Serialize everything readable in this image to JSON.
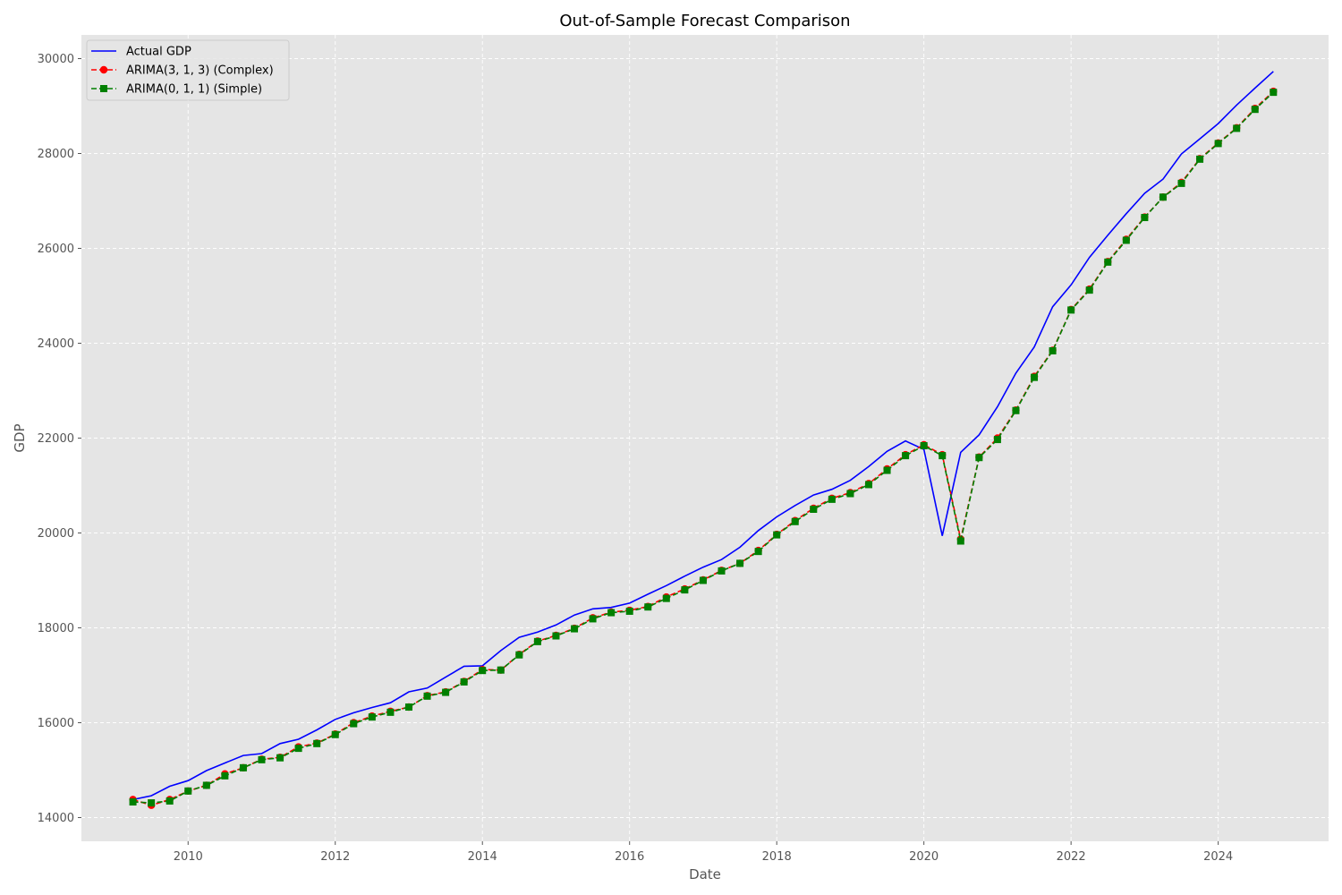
{
  "chart_data": {
    "type": "line",
    "title": "Out-of-Sample Forecast Comparison",
    "xlabel": "Date",
    "ylabel": "GDP",
    "xlim": [
      2008.55,
      2025.5
    ],
    "ylim": [
      13500,
      30500
    ],
    "x_ticks": [
      2010,
      2012,
      2014,
      2016,
      2018,
      2020,
      2022,
      2024
    ],
    "y_ticks": [
      14000,
      16000,
      18000,
      20000,
      22000,
      24000,
      26000,
      28000,
      30000
    ],
    "grid": true,
    "legend_position": "top-left",
    "x": [
      2009.25,
      2009.5,
      2009.75,
      2010.0,
      2010.25,
      2010.5,
      2010.75,
      2011.0,
      2011.25,
      2011.5,
      2011.75,
      2012.0,
      2012.25,
      2012.5,
      2012.75,
      2013.0,
      2013.25,
      2013.5,
      2013.75,
      2014.0,
      2014.25,
      2014.5,
      2014.75,
      2015.0,
      2015.25,
      2015.5,
      2015.75,
      2016.0,
      2016.25,
      2016.5,
      2016.75,
      2017.0,
      2017.25,
      2017.5,
      2017.75,
      2018.0,
      2018.25,
      2018.5,
      2018.75,
      2019.0,
      2019.25,
      2019.5,
      2019.75,
      2020.0,
      2020.25,
      2020.5,
      2020.75,
      2021.0,
      2021.25,
      2021.5,
      2021.75,
      2022.0,
      2022.25,
      2022.5,
      2022.75,
      2023.0,
      2023.25,
      2023.5,
      2023.75,
      2024.0,
      2024.25,
      2024.5,
      2024.75
    ],
    "series": [
      {
        "name": "Actual GDP",
        "color": "#0000ff",
        "style": "solid",
        "marker": "none",
        "values": [
          14380,
          14460,
          14660,
          14780,
          14990,
          15150,
          15310,
          15350,
          15560,
          15650,
          15850,
          16070,
          16210,
          16320,
          16420,
          16650,
          16730,
          16960,
          17190,
          17200,
          17520,
          17800,
          17910,
          18060,
          18270,
          18400,
          18430,
          18520,
          18710,
          18890,
          19090,
          19280,
          19440,
          19700,
          20050,
          20340,
          20580,
          20800,
          20920,
          21110,
          21400,
          21720,
          21940,
          21760,
          19940,
          21700,
          22070,
          22660,
          23370,
          23920,
          24770,
          25230,
          25810,
          26280,
          26730,
          27160,
          27460,
          27990,
          28310,
          28630,
          29020,
          29380,
          29730
        ]
      },
      {
        "name": "ARIMA(3, 1, 3) (Complex)",
        "color": "#ff0000",
        "style": "dashed",
        "marker": "circle",
        "values": [
          14380,
          14260,
          14380,
          14560,
          14680,
          14920,
          15050,
          15230,
          15270,
          15490,
          15570,
          15760,
          16000,
          16140,
          16240,
          16330,
          16570,
          16650,
          16870,
          17120,
          17110,
          17440,
          17720,
          17840,
          17990,
          18210,
          18330,
          18370,
          18450,
          18650,
          18820,
          19010,
          19210,
          19360,
          19630,
          19970,
          20260,
          20520,
          20730,
          20850,
          21040,
          21350,
          21650,
          21860,
          21650,
          19870,
          21600,
          22000,
          22590,
          23300,
          23850,
          24710,
          25140,
          25720,
          26190,
          26660,
          27080,
          27390,
          27890,
          28220,
          28540,
          28950,
          29310
        ]
      },
      {
        "name": "ARIMA(0, 1, 1) (Simple)",
        "color": "#008000",
        "style": "dashed",
        "marker": "square",
        "values": [
          14330,
          14310,
          14350,
          14560,
          14680,
          14880,
          15050,
          15220,
          15260,
          15460,
          15560,
          15750,
          15980,
          16120,
          16220,
          16330,
          16560,
          16640,
          16860,
          17100,
          17110,
          17430,
          17710,
          17830,
          17980,
          18190,
          18320,
          18350,
          18440,
          18620,
          18800,
          19000,
          19200,
          19360,
          19610,
          19960,
          20240,
          20500,
          20710,
          20830,
          21020,
          21320,
          21630,
          21840,
          21630,
          19830,
          21590,
          21970,
          22580,
          23280,
          23840,
          24700,
          25120,
          25710,
          26170,
          26650,
          27080,
          27370,
          27880,
          28210,
          28530,
          28930,
          29290
        ]
      }
    ]
  }
}
